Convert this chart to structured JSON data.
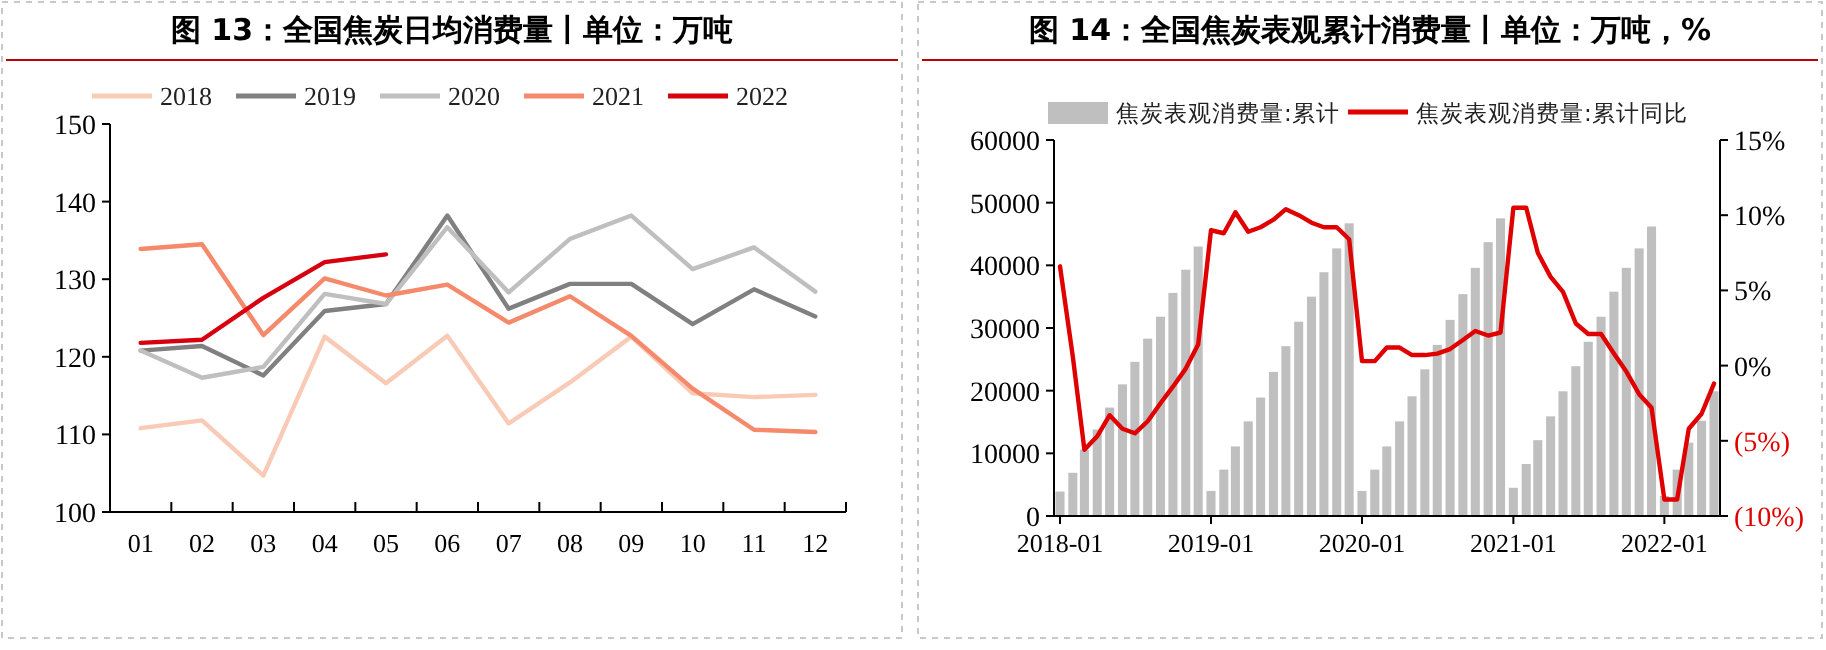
{
  "chart_data": [
    {
      "type": "line",
      "title": "图 13：全国焦炭日均消费量丨单位：万吨",
      "categories": [
        "01",
        "02",
        "03",
        "04",
        "05",
        "06",
        "07",
        "08",
        "09",
        "10",
        "11",
        "12"
      ],
      "ylim": [
        100,
        150
      ],
      "yticks": [
        100,
        110,
        120,
        130,
        140,
        150
      ],
      "legend": "top",
      "grid": false,
      "series": [
        {
          "name": "2018",
          "color": "#f9cbb7",
          "values": [
            110.8,
            111.8,
            104.7,
            122.6,
            116.6,
            122.7,
            111.4,
            116.7,
            122.6,
            115.3,
            114.8,
            115.1
          ]
        },
        {
          "name": "2019",
          "color": "#808080",
          "values": [
            120.8,
            121.4,
            117.6,
            125.9,
            126.8,
            138.2,
            126.2,
            129.4,
            129.4,
            124.2,
            128.7,
            125.2
          ]
        },
        {
          "name": "2020",
          "color": "#bfbfbf",
          "values": [
            120.8,
            117.3,
            118.7,
            128.1,
            126.8,
            136.7,
            128.3,
            135.2,
            138.2,
            131.3,
            134.1,
            128.4
          ]
        },
        {
          "name": "2021",
          "color": "#f4896b",
          "values": [
            133.9,
            134.5,
            122.8,
            130.1,
            127.9,
            129.3,
            124.4,
            127.8,
            122.7,
            115.9,
            110.6,
            110.3
          ]
        },
        {
          "name": "2022",
          "color": "#d7000f",
          "values": [
            121.8,
            122.2,
            127.6,
            132.2,
            133.2,
            null,
            null,
            null,
            null,
            null,
            null,
            null
          ]
        }
      ]
    },
    {
      "type": "bar",
      "title": "图 14：全国焦炭表观累计消费量丨单位：万吨，%",
      "legend": "top",
      "grid": false,
      "x": [
        "2018-01",
        "2018-02",
        "2018-03",
        "2018-04",
        "2018-05",
        "2018-06",
        "2018-07",
        "2018-08",
        "2018-09",
        "2018-10",
        "2018-11",
        "2018-12",
        "2019-01",
        "2019-02",
        "2019-03",
        "2019-04",
        "2019-05",
        "2019-06",
        "2019-07",
        "2019-08",
        "2019-09",
        "2019-10",
        "2019-11",
        "2019-12",
        "2020-01",
        "2020-02",
        "2020-03",
        "2020-04",
        "2020-05",
        "2020-06",
        "2020-07",
        "2020-08",
        "2020-09",
        "2020-10",
        "2020-11",
        "2020-12",
        "2021-01",
        "2021-02",
        "2021-03",
        "2021-04",
        "2021-05",
        "2021-06",
        "2021-07",
        "2021-08",
        "2021-09",
        "2021-10",
        "2021-11",
        "2021-12",
        "2022-01",
        "2022-02",
        "2022-03",
        "2022-04",
        "2022-05"
      ],
      "xlim": [
        "2018-01",
        "2022-05"
      ],
      "xticks": [
        "2018-01",
        "2019-01",
        "2020-01",
        "2021-01",
        "2022-01"
      ],
      "ylim": [
        0,
        60000
      ],
      "yticks": [
        0,
        10000,
        20000,
        30000,
        40000,
        50000,
        60000
      ],
      "y2lim": [
        -10,
        15
      ],
      "y2ticks": [
        {
          "value": -10,
          "label": "(10%)"
        },
        {
          "value": -5,
          "label": "(5%)"
        },
        {
          "value": 0,
          "label": "0%"
        },
        {
          "value": 5,
          "label": "5%"
        },
        {
          "value": 10,
          "label": "10%"
        },
        {
          "value": 15,
          "label": "15%"
        }
      ],
      "series": [
        {
          "name": "焦炭表观消费量:累计",
          "color": "#bfbfbf",
          "values": [
            3900,
            6900,
            10600,
            13800,
            17300,
            21000,
            24600,
            28300,
            31800,
            35600,
            39300,
            43000,
            4000,
            7400,
            11100,
            15100,
            18900,
            23000,
            27100,
            31000,
            35000,
            38900,
            42700,
            46700,
            4000,
            7400,
            11100,
            15100,
            19100,
            23400,
            27300,
            31300,
            35400,
            39600,
            43700,
            47500,
            4500,
            8300,
            12100,
            15900,
            19900,
            23900,
            27800,
            31800,
            35800,
            39600,
            42700,
            46200,
            3200,
            7400,
            11700,
            15200,
            19900
          ]
        },
        {
          "name": "焦炭表观消费量:累计同比",
          "type": "line",
          "axis": "y2",
          "color": "#e00000",
          "values": [
            6.6,
            0.6,
            -5.6,
            -4.7,
            -3.3,
            -4.2,
            -4.5,
            -3.7,
            -2.5,
            -1.4,
            -0.2,
            1.4,
            9.0,
            8.8,
            10.2,
            8.9,
            9.2,
            9.7,
            10.4,
            10.0,
            9.5,
            9.2,
            9.2,
            8.4,
            0.3,
            0.3,
            1.2,
            1.2,
            0.7,
            0.7,
            0.8,
            1.1,
            1.7,
            2.3,
            2.0,
            2.2,
            10.5,
            10.5,
            7.5,
            5.9,
            4.9,
            2.8,
            2.1,
            2.1,
            0.8,
            -0.4,
            -1.9,
            -2.8,
            -8.9,
            -8.9,
            -4.2,
            -3.2,
            -1.2
          ]
        }
      ]
    }
  ]
}
